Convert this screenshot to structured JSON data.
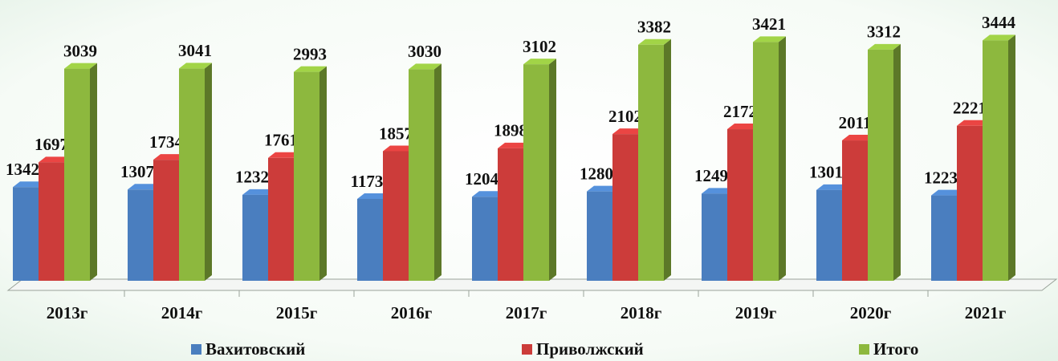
{
  "chart_data": {
    "type": "bar3d",
    "categories": [
      "2013г",
      "2014г",
      "2015г",
      "2016г",
      "2017г",
      "2018г",
      "2019г",
      "2020г",
      "2021г"
    ],
    "series": [
      {
        "name": "Вахитовский",
        "color": "#4a7ebf",
        "values": [
          1342,
          1307,
          1232,
          1173,
          1204,
          1280,
          1249,
          1301,
          1223
        ]
      },
      {
        "name": "Приволжский",
        "color": "#cc3c3a",
        "values": [
          1697,
          1734,
          1761,
          1857,
          1898,
          2102,
          2172,
          2011,
          2221
        ]
      },
      {
        "name": "Итого",
        "color": "#8db83e",
        "values": [
          3039,
          3041,
          2993,
          3030,
          3102,
          3382,
          3421,
          3312,
          3444
        ]
      }
    ]
  }
}
